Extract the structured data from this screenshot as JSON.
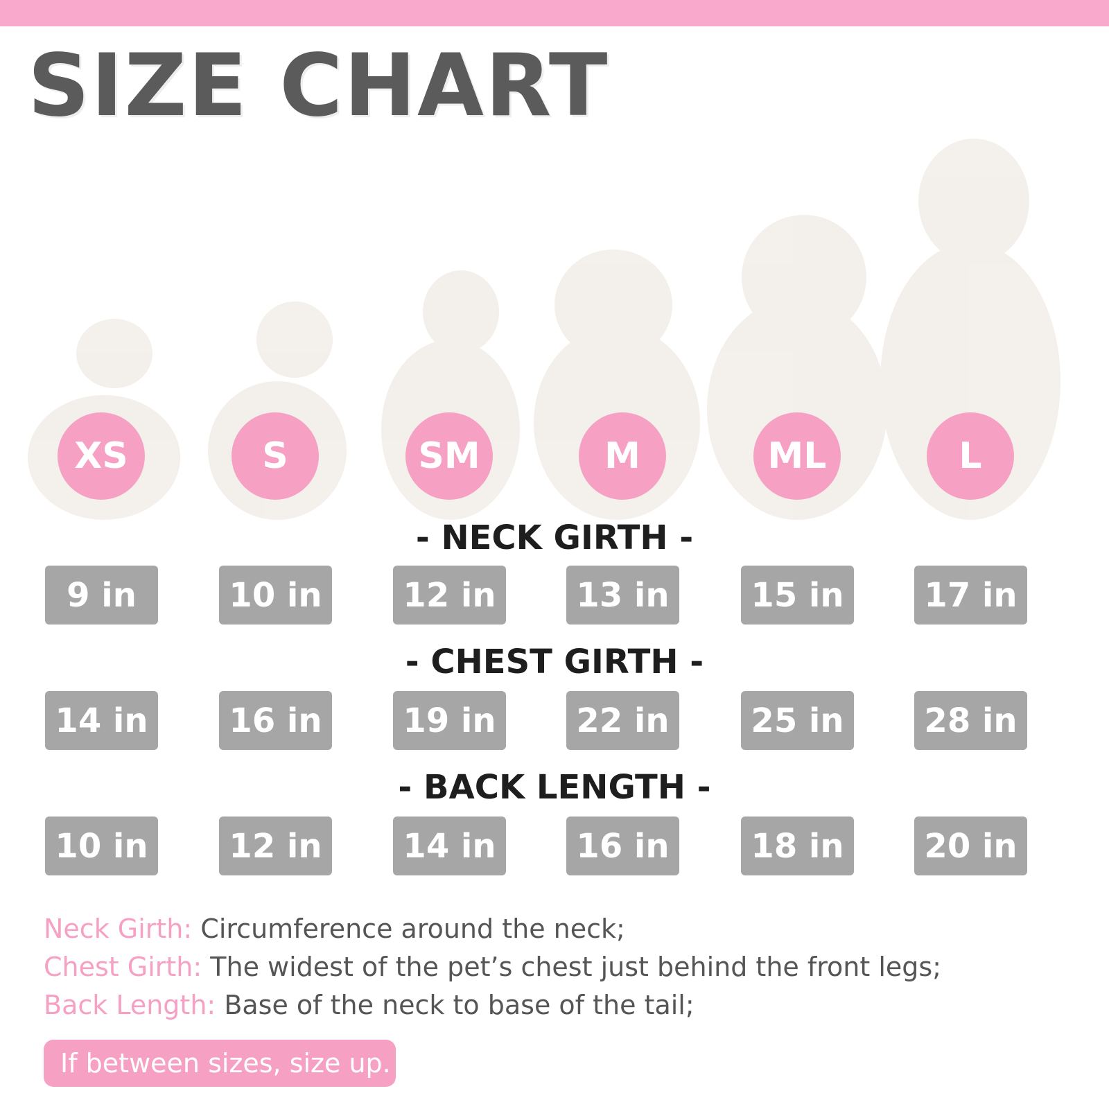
{
  "title": "SIZE CHART",
  "sizes": [
    "XS",
    "S",
    "SM",
    "M",
    "ML",
    "L"
  ],
  "sections": [
    {
      "heading": "- NECK GIRTH -",
      "values": [
        "9 in",
        "10 in",
        "12 in",
        "13 in",
        "15 in",
        "17 in"
      ]
    },
    {
      "heading": "- CHEST GIRTH -",
      "values": [
        "14 in",
        "16 in",
        "19 in",
        "22 in",
        "25 in",
        "28 in"
      ]
    },
    {
      "heading": "- BACK LENGTH -",
      "values": [
        "10 in",
        "12 in",
        "14 in",
        "16 in",
        "18 in",
        "20 in"
      ]
    }
  ],
  "definitions": [
    {
      "term": "Neck Girth:",
      "text": "Circumference around the neck;"
    },
    {
      "term": "Chest Girth:",
      "text": "The widest of the pet’s chest just behind the front legs;"
    },
    {
      "term": "Back Length:",
      "text": "Base of the neck to base of the tail;"
    }
  ],
  "note": "If between sizes, size up."
}
